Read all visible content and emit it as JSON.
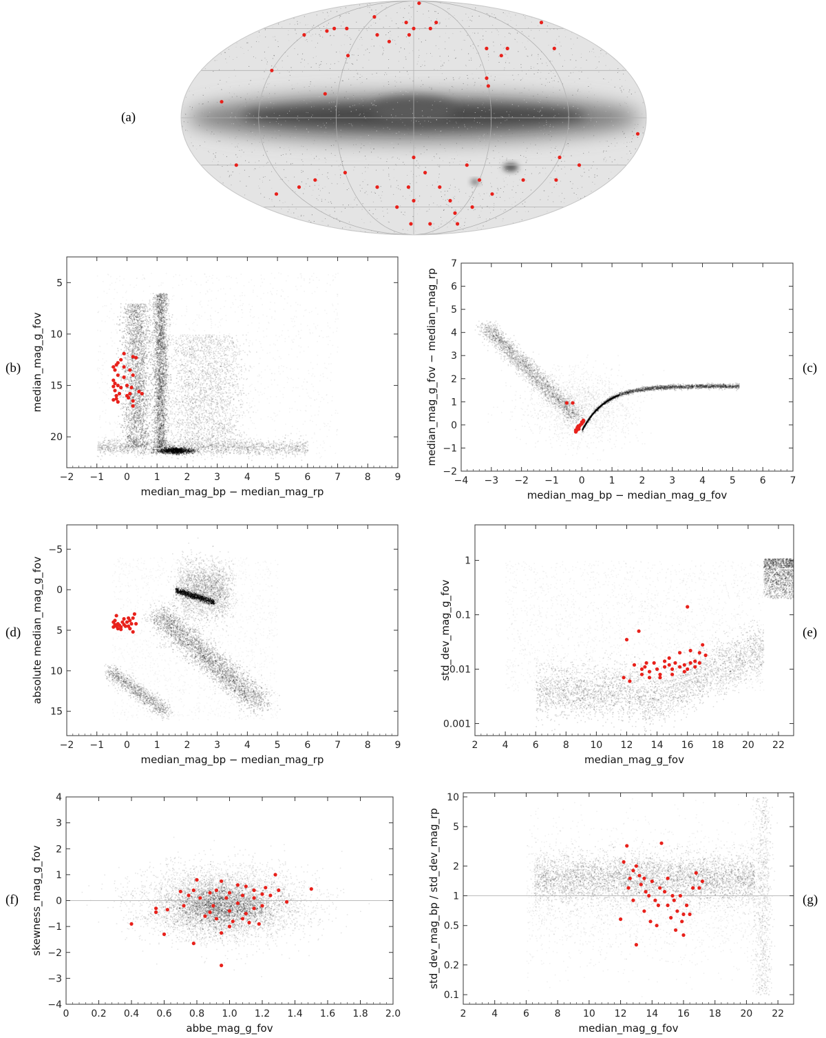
{
  "panel_labels": [
    "(a)",
    "(b)",
    "(c)",
    "(d)",
    "(e)",
    "(f)",
    "(g)"
  ],
  "chart_data": [
    {
      "id": "a",
      "type": "scatter",
      "projection": "mollweide",
      "title": "",
      "background": "sky density map (grey), Milky Way plane dark",
      "highlight_color": "#e8211b",
      "note": "red points on sky, galactic coordinates (l, b in degrees)",
      "points": [
        [
          170,
          65
        ],
        [
          135,
          45
        ],
        [
          20,
          85
        ],
        [
          0,
          60
        ],
        [
          -10,
          65
        ],
        [
          -40,
          55
        ],
        [
          -60,
          70
        ],
        [
          -80,
          60
        ],
        [
          -95,
          60
        ],
        [
          -100,
          58
        ],
        [
          -120,
          55
        ],
        [
          -120,
          30
        ],
        [
          70,
          45
        ],
        [
          90,
          45
        ],
        [
          80,
          40
        ],
        [
          60,
          25
        ],
        [
          60,
          20
        ],
        [
          30,
          65
        ],
        [
          20,
          60
        ],
        [
          -5,
          55
        ],
        [
          -25,
          50
        ],
        [
          -60,
          40
        ],
        [
          -70,
          15
        ],
        [
          -150,
          10
        ],
        [
          -150,
          -30
        ],
        [
          -140,
          -50
        ],
        [
          -110,
          -45
        ],
        [
          -90,
          -40
        ],
        [
          175,
          -10
        ],
        [
          140,
          -30
        ],
        [
          100,
          -40
        ],
        [
          80,
          -50
        ],
        [
          60,
          -40
        ],
        [
          40,
          -55
        ],
        [
          10,
          -35
        ],
        [
          0,
          -55
        ],
        [
          -5,
          -45
        ],
        [
          -20,
          -60
        ],
        [
          -5,
          -75
        ],
        [
          30,
          -75
        ],
        [
          55,
          -65
        ],
        [
          70,
          -60
        ],
        [
          80,
          -75
        ],
        [
          120,
          -25
        ],
        [
          130,
          -40
        ],
        [
          45,
          -30
        ],
        [
          25,
          -45
        ],
        [
          -35,
          -45
        ],
        [
          -60,
          -35
        ],
        [
          0,
          -25
        ]
      ]
    },
    {
      "id": "b",
      "type": "scatter",
      "xlabel": "median_mag_bp − median_mag_rp",
      "ylabel": "median_mag_g_fov",
      "xlim": [
        -2,
        9
      ],
      "ylim": [
        23,
        2.5
      ],
      "xticks": [
        -2,
        -1,
        0,
        1,
        2,
        3,
        4,
        5,
        6,
        7,
        8,
        9
      ],
      "yticks": [
        5,
        10,
        15,
        20
      ],
      "highlight_color": "#e8211b",
      "highlight": [
        [
          -0.45,
          13.2
        ],
        [
          -0.4,
          13.5
        ],
        [
          -0.35,
          13.0
        ],
        [
          -0.3,
          14.0
        ],
        [
          -0.45,
          14.5
        ],
        [
          -0.3,
          15.0
        ],
        [
          -0.4,
          15.5
        ],
        [
          -0.35,
          16.0
        ],
        [
          -0.45,
          16.4
        ],
        [
          -0.3,
          16.6
        ],
        [
          -0.2,
          12.5
        ],
        [
          -0.1,
          11.9
        ],
        [
          -0.1,
          14.2
        ],
        [
          0.0,
          15.0
        ],
        [
          -0.2,
          15.2
        ],
        [
          0.1,
          15.8
        ],
        [
          0.2,
          16.5
        ],
        [
          0.2,
          17.0
        ],
        [
          0.3,
          12.3
        ],
        [
          0.2,
          12.2
        ],
        [
          0.1,
          13.5
        ],
        [
          -0.3,
          12.8
        ],
        [
          -0.4,
          14.8
        ],
        [
          -0.25,
          15.8
        ],
        [
          0.05,
          16.2
        ],
        [
          0.2,
          14.0
        ],
        [
          0.4,
          15.6
        ],
        [
          0.5,
          15.8
        ],
        [
          -0.1,
          13.2
        ],
        [
          -0.45,
          15.1
        ],
        [
          -0.35,
          16.3
        ],
        [
          0.15,
          15.2
        ],
        [
          0.0,
          16.0
        ]
      ]
    },
    {
      "id": "c",
      "type": "scatter",
      "xlabel": "median_mag_bp − median_mag_g_fov",
      "ylabel": "median_mag_g_fov − median_mag_rp",
      "xlim": [
        -4,
        7
      ],
      "ylim": [
        -2,
        7
      ],
      "xticks": [
        -4,
        -3,
        -2,
        -1,
        0,
        1,
        2,
        3,
        4,
        5,
        6,
        7
      ],
      "yticks": [
        -2,
        -1,
        0,
        1,
        2,
        3,
        4,
        5,
        6,
        7
      ],
      "highlight_color": "#e8211b",
      "highlight": [
        [
          -0.5,
          0.95
        ],
        [
          -0.3,
          0.95
        ],
        [
          -0.2,
          -0.3
        ],
        [
          -0.18,
          -0.25
        ],
        [
          -0.15,
          -0.2
        ],
        [
          -0.13,
          -0.15
        ],
        [
          -0.1,
          -0.1
        ],
        [
          -0.08,
          -0.05
        ],
        [
          -0.05,
          0.0
        ],
        [
          0.0,
          0.05
        ],
        [
          0.02,
          0.1
        ],
        [
          0.05,
          0.15
        ],
        [
          -0.12,
          -0.05
        ],
        [
          -0.15,
          -0.12
        ],
        [
          -0.2,
          -0.22
        ],
        [
          0.0,
          0.12
        ],
        [
          0.05,
          0.2
        ],
        [
          -0.1,
          -0.18
        ]
      ]
    },
    {
      "id": "d",
      "type": "scatter",
      "xlabel": "median_mag_bp − median_mag_rp",
      "ylabel": "absolute median_mag_g_fov",
      "xlim": [
        -2,
        9
      ],
      "ylim": [
        18,
        -8
      ],
      "xticks": [
        -2,
        -1,
        0,
        1,
        2,
        3,
        4,
        5,
        6,
        7,
        8,
        9
      ],
      "yticks": [
        -5,
        0,
        5,
        10,
        15
      ],
      "highlight_color": "#e8211b",
      "highlight": [
        [
          -0.45,
          4.0
        ],
        [
          -0.4,
          4.3
        ],
        [
          -0.35,
          4.5
        ],
        [
          -0.3,
          4.8
        ],
        [
          -0.45,
          4.6
        ],
        [
          -0.4,
          3.8
        ],
        [
          -0.35,
          3.2
        ],
        [
          -0.3,
          4.2
        ],
        [
          -0.25,
          4.4
        ],
        [
          -0.2,
          4.6
        ],
        [
          -0.15,
          4.0
        ],
        [
          -0.1,
          4.3
        ],
        [
          -0.05,
          4.5
        ],
        [
          0.0,
          4.0
        ],
        [
          0.05,
          4.5
        ],
        [
          0.1,
          3.8
        ],
        [
          0.15,
          4.2
        ],
        [
          0.2,
          3.5
        ],
        [
          0.25,
          3.0
        ],
        [
          0.2,
          5.2
        ],
        [
          -0.1,
          3.6
        ],
        [
          0.05,
          3.5
        ],
        [
          -0.2,
          4.9
        ],
        [
          0.3,
          4.2
        ],
        [
          0.1,
          4.8
        ]
      ]
    },
    {
      "id": "e",
      "type": "scatter",
      "xlabel": "median_mag_g_fov",
      "ylabel": "std_dev_mag_g_fov",
      "xlim": [
        2,
        23
      ],
      "ylim": [
        0.0006,
        4.5
      ],
      "yscale": "log",
      "xticks": [
        2,
        4,
        6,
        8,
        10,
        12,
        14,
        16,
        18,
        20,
        22
      ],
      "yticks": [
        0.001,
        0.01,
        0.1,
        1
      ],
      "ytick_labels": [
        "0.001",
        "0.01",
        "0.1",
        "1"
      ],
      "highlight_color": "#e8211b",
      "trend_line": {
        "x": [
          6,
          7,
          8,
          9,
          10,
          10.5,
          11,
          11.5,
          12,
          13,
          14,
          15,
          16,
          17,
          18,
          19,
          20,
          20.5,
          21,
          21.5,
          22,
          23
        ],
        "y": [
          0.008,
          0.0075,
          0.0078,
          0.007,
          0.006,
          0.0065,
          0.0052,
          0.006,
          0.0055,
          0.005,
          0.005,
          0.0055,
          0.0065,
          0.0085,
          0.012,
          0.02,
          0.04,
          0.07,
          0.2,
          0.5,
          0.7,
          0.7
        ]
      },
      "highlight": [
        [
          12.0,
          0.035
        ],
        [
          12.8,
          0.05
        ],
        [
          16.0,
          0.14
        ],
        [
          12.5,
          0.012
        ],
        [
          13.0,
          0.01
        ],
        [
          13.2,
          0.011
        ],
        [
          13.5,
          0.009
        ],
        [
          13.8,
          0.013
        ],
        [
          14.0,
          0.01
        ],
        [
          14.2,
          0.008
        ],
        [
          14.5,
          0.011
        ],
        [
          14.8,
          0.012
        ],
        [
          15.0,
          0.01
        ],
        [
          15.2,
          0.013
        ],
        [
          15.5,
          0.011
        ],
        [
          15.8,
          0.012
        ],
        [
          16.0,
          0.01
        ],
        [
          16.2,
          0.013
        ],
        [
          16.5,
          0.011
        ],
        [
          16.8,
          0.02
        ],
        [
          17.0,
          0.028
        ],
        [
          17.2,
          0.018
        ],
        [
          13.0,
          0.008
        ],
        [
          13.5,
          0.007
        ],
        [
          14.2,
          0.007
        ],
        [
          15.0,
          0.008
        ],
        [
          15.8,
          0.009
        ],
        [
          16.5,
          0.014
        ],
        [
          12.2,
          0.006
        ],
        [
          11.8,
          0.007
        ],
        [
          14.8,
          0.016
        ],
        [
          15.5,
          0.02
        ],
        [
          16.2,
          0.022
        ],
        [
          16.8,
          0.013
        ],
        [
          13.3,
          0.013
        ],
        [
          14.5,
          0.014
        ]
      ]
    },
    {
      "id": "f",
      "type": "scatter",
      "xlabel": "abbe_mag_g_fov",
      "ylabel": "skewness_mag_g_fov",
      "xlim": [
        0,
        2.0
      ],
      "ylim": [
        -4,
        4
      ],
      "xticks": [
        0,
        0.2,
        0.4,
        0.6,
        0.8,
        1.0,
        1.2,
        1.4,
        1.6,
        1.8,
        2.0
      ],
      "xtick_labels": [
        "0",
        "0.2",
        "0.4",
        "0.6",
        "0.8",
        "1.0",
        "1.2",
        "1.4",
        "1.6",
        "1.8",
        "2.0"
      ],
      "yticks": [
        -4,
        -3,
        -2,
        -1,
        0,
        1,
        2,
        3,
        4
      ],
      "highlight_color": "#e8211b",
      "highlight": [
        [
          0.4,
          -0.9
        ],
        [
          0.55,
          -0.3
        ],
        [
          0.55,
          -0.45
        ],
        [
          0.6,
          -1.3
        ],
        [
          0.62,
          -0.35
        ],
        [
          0.7,
          0.35
        ],
        [
          0.72,
          -0.2
        ],
        [
          0.75,
          0.2
        ],
        [
          0.78,
          0.4
        ],
        [
          0.78,
          -1.65
        ],
        [
          0.8,
          0.8
        ],
        [
          0.82,
          0.1
        ],
        [
          0.85,
          -0.6
        ],
        [
          0.88,
          0.3
        ],
        [
          0.9,
          -0.2
        ],
        [
          0.92,
          0.4
        ],
        [
          0.95,
          0.75
        ],
        [
          0.95,
          -1.25
        ],
        [
          0.95,
          -2.5
        ],
        [
          0.98,
          0.1
        ],
        [
          1.0,
          -0.4
        ],
        [
          1.0,
          0.3
        ],
        [
          1.02,
          -0.8
        ],
        [
          1.05,
          0.6
        ],
        [
          1.05,
          -0.1
        ],
        [
          1.08,
          0.2
        ],
        [
          1.1,
          -0.5
        ],
        [
          1.1,
          0.55
        ],
        [
          1.12,
          -0.85
        ],
        [
          1.15,
          0.4
        ],
        [
          1.15,
          -0.3
        ],
        [
          1.18,
          -0.9
        ],
        [
          1.2,
          0.25
        ],
        [
          1.22,
          0.5
        ],
        [
          1.25,
          0.2
        ],
        [
          1.28,
          1.0
        ],
        [
          1.3,
          0.4
        ],
        [
          1.35,
          -0.05
        ],
        [
          1.5,
          0.45
        ],
        [
          0.88,
          -0.45
        ],
        [
          0.92,
          -0.7
        ],
        [
          1.0,
          -1.0
        ],
        [
          1.08,
          -0.7
        ],
        [
          1.15,
          0.1
        ],
        [
          1.2,
          -0.2
        ]
      ]
    },
    {
      "id": "g",
      "type": "scatter",
      "xlabel": "median_mag_g_fov",
      "ylabel": "std_dev_mag_bp / std_dev_mag_rp",
      "xlim": [
        2,
        23
      ],
      "ylim": [
        0.08,
        11
      ],
      "yscale": "log",
      "xticks": [
        2,
        4,
        6,
        8,
        10,
        12,
        14,
        16,
        18,
        20,
        22
      ],
      "yticks": [
        0.1,
        0.2,
        0.5,
        1,
        2,
        5,
        10
      ],
      "ytick_labels": [
        "0.1",
        "0.2",
        "0.5",
        "1",
        "2",
        "5",
        "10"
      ],
      "highlight_color": "#e8211b",
      "highlight": [
        [
          12.0,
          0.58
        ],
        [
          12.2,
          2.2
        ],
        [
          12.4,
          3.2
        ],
        [
          12.5,
          1.2
        ],
        [
          12.6,
          1.5
        ],
        [
          12.8,
          0.9
        ],
        [
          13.0,
          2.0
        ],
        [
          13.0,
          0.32
        ],
        [
          13.2,
          1.6
        ],
        [
          13.3,
          1.3
        ],
        [
          13.5,
          1.5
        ],
        [
          13.5,
          0.7
        ],
        [
          13.8,
          1.0
        ],
        [
          13.9,
          0.55
        ],
        [
          14.0,
          1.4
        ],
        [
          14.2,
          0.9
        ],
        [
          14.3,
          0.5
        ],
        [
          14.5,
          1.2
        ],
        [
          14.6,
          3.4
        ],
        [
          14.8,
          1.1
        ],
        [
          15.0,
          0.8
        ],
        [
          15.0,
          1.5
        ],
        [
          15.2,
          0.6
        ],
        [
          15.3,
          1.0
        ],
        [
          15.5,
          0.45
        ],
        [
          15.6,
          0.7
        ],
        [
          15.8,
          1.0
        ],
        [
          15.9,
          0.55
        ],
        [
          16.0,
          0.65
        ],
        [
          16.2,
          0.8
        ],
        [
          16.4,
          0.65
        ],
        [
          16.6,
          1.2
        ],
        [
          16.8,
          1.7
        ],
        [
          17.0,
          1.2
        ],
        [
          17.2,
          1.4
        ],
        [
          12.8,
          1.8
        ],
        [
          13.6,
          1.1
        ],
        [
          14.4,
          0.8
        ],
        [
          15.4,
          0.9
        ],
        [
          16.0,
          0.4
        ]
      ]
    }
  ]
}
